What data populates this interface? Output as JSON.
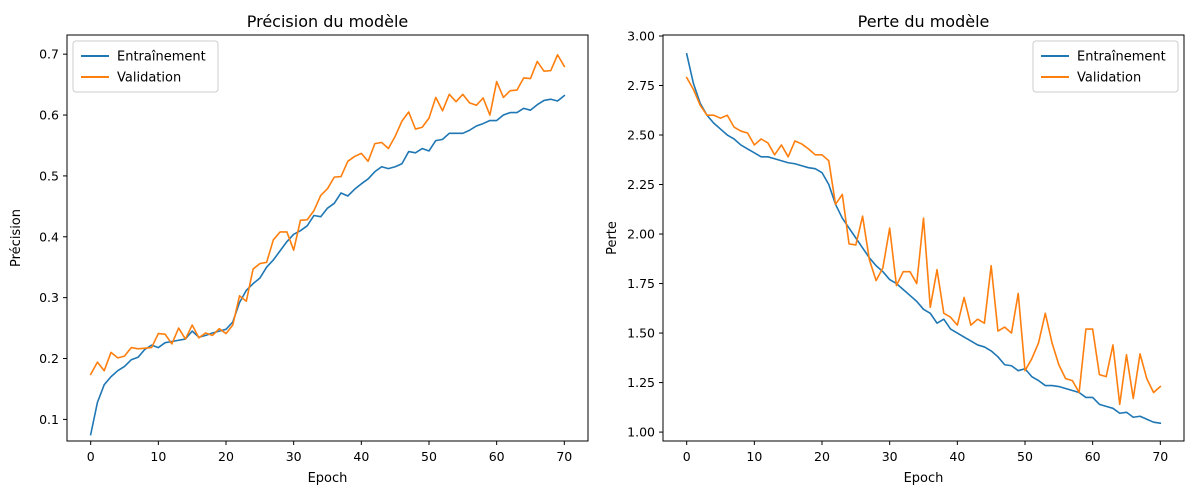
{
  "chart_data": [
    {
      "type": "line",
      "title": "Précision du modèle",
      "xlabel": "Epoch",
      "ylabel": "Précision",
      "xlim": [
        -3.5,
        73.5
      ],
      "ylim": [
        0.0645,
        0.7315
      ],
      "xticks": [
        0,
        10,
        20,
        30,
        40,
        50,
        60,
        70
      ],
      "yticks": [
        0.1,
        0.2,
        0.3,
        0.4,
        0.5,
        0.6,
        0.7
      ],
      "grid": false,
      "legend": "top-left",
      "x": [
        0,
        1,
        2,
        3,
        4,
        5,
        6,
        7,
        8,
        9,
        10,
        11,
        12,
        13,
        14,
        15,
        16,
        17,
        18,
        19,
        20,
        21,
        22,
        23,
        24,
        25,
        26,
        27,
        28,
        29,
        30,
        31,
        32,
        33,
        34,
        35,
        36,
        37,
        38,
        39,
        40,
        41,
        42,
        43,
        44,
        45,
        46,
        47,
        48,
        49,
        50,
        51,
        52,
        53,
        54,
        55,
        56,
        57,
        58,
        59,
        60,
        61,
        62,
        63,
        64,
        65,
        66,
        67,
        68,
        69,
        70
      ],
      "series": [
        {
          "name": "Entraînement",
          "color": "#1f77b4",
          "values": [
            0.075,
            0.128,
            0.157,
            0.17,
            0.18,
            0.187,
            0.198,
            0.202,
            0.215,
            0.222,
            0.218,
            0.226,
            0.228,
            0.23,
            0.232,
            0.245,
            0.235,
            0.238,
            0.242,
            0.245,
            0.248,
            0.26,
            0.292,
            0.312,
            0.323,
            0.332,
            0.35,
            0.362,
            0.377,
            0.392,
            0.404,
            0.41,
            0.418,
            0.435,
            0.433,
            0.447,
            0.455,
            0.472,
            0.467,
            0.478,
            0.487,
            0.495,
            0.507,
            0.515,
            0.512,
            0.515,
            0.52,
            0.54,
            0.538,
            0.545,
            0.541,
            0.558,
            0.56,
            0.57,
            0.57,
            0.57,
            0.575,
            0.582,
            0.586,
            0.591,
            0.591,
            0.6,
            0.604,
            0.604,
            0.611,
            0.608,
            0.617,
            0.624,
            0.626,
            0.623,
            0.632
          ]
        },
        {
          "name": "Validation",
          "color": "#ff7f0e",
          "values": [
            0.174,
            0.194,
            0.18,
            0.21,
            0.201,
            0.204,
            0.218,
            0.216,
            0.217,
            0.218,
            0.241,
            0.24,
            0.224,
            0.25,
            0.232,
            0.255,
            0.234,
            0.242,
            0.238,
            0.249,
            0.241,
            0.255,
            0.303,
            0.294,
            0.347,
            0.356,
            0.358,
            0.395,
            0.408,
            0.408,
            0.378,
            0.427,
            0.428,
            0.443,
            0.468,
            0.479,
            0.498,
            0.499,
            0.524,
            0.532,
            0.537,
            0.524,
            0.553,
            0.555,
            0.545,
            0.565,
            0.59,
            0.605,
            0.577,
            0.58,
            0.595,
            0.629,
            0.607,
            0.634,
            0.622,
            0.634,
            0.62,
            0.616,
            0.628,
            0.6,
            0.655,
            0.629,
            0.64,
            0.641,
            0.661,
            0.66,
            0.688,
            0.672,
            0.673,
            0.699,
            0.68
          ]
        }
      ]
    },
    {
      "type": "line",
      "title": "Perte du modèle",
      "xlabel": "Epoch",
      "ylabel": "Perte",
      "xlim": [
        -3.5,
        73.5
      ],
      "ylim": [
        0.955,
        3.005
      ],
      "xticks": [
        0,
        10,
        20,
        30,
        40,
        50,
        60,
        70
      ],
      "yticks": [
        1.0,
        1.25,
        1.5,
        1.75,
        2.0,
        2.25,
        2.5,
        2.75,
        3.0
      ],
      "ytick_labels": [
        "1.00",
        "1.25",
        "1.50",
        "1.75",
        "2.00",
        "2.25",
        "2.50",
        "2.75",
        "3.00"
      ],
      "grid": false,
      "legend": "top-right",
      "x": [
        0,
        1,
        2,
        3,
        4,
        5,
        6,
        7,
        8,
        9,
        10,
        11,
        12,
        13,
        14,
        15,
        16,
        17,
        18,
        19,
        20,
        21,
        22,
        23,
        24,
        25,
        26,
        27,
        28,
        29,
        30,
        31,
        32,
        33,
        34,
        35,
        36,
        37,
        38,
        39,
        40,
        41,
        42,
        43,
        44,
        45,
        46,
        47,
        48,
        49,
        50,
        51,
        52,
        53,
        54,
        55,
        56,
        57,
        58,
        59,
        60,
        61,
        62,
        63,
        64,
        65,
        66,
        67,
        68,
        69,
        70
      ],
      "series": [
        {
          "name": "Entraînement",
          "color": "#1f77b4",
          "values": [
            2.91,
            2.76,
            2.66,
            2.6,
            2.56,
            2.53,
            2.5,
            2.48,
            2.45,
            2.43,
            2.41,
            2.39,
            2.39,
            2.38,
            2.37,
            2.36,
            2.355,
            2.345,
            2.335,
            2.33,
            2.31,
            2.25,
            2.15,
            2.08,
            2.03,
            1.98,
            1.93,
            1.88,
            1.84,
            1.81,
            1.77,
            1.75,
            1.72,
            1.69,
            1.66,
            1.62,
            1.6,
            1.55,
            1.57,
            1.52,
            1.5,
            1.48,
            1.46,
            1.44,
            1.43,
            1.41,
            1.38,
            1.34,
            1.335,
            1.31,
            1.32,
            1.28,
            1.26,
            1.235,
            1.235,
            1.23,
            1.22,
            1.21,
            1.2,
            1.175,
            1.175,
            1.14,
            1.13,
            1.12,
            1.095,
            1.1,
            1.075,
            1.08,
            1.065,
            1.05,
            1.045
          ]
        },
        {
          "name": "Validation",
          "color": "#ff7f0e",
          "values": [
            2.79,
            2.73,
            2.65,
            2.6,
            2.6,
            2.585,
            2.6,
            2.54,
            2.52,
            2.51,
            2.45,
            2.48,
            2.46,
            2.4,
            2.45,
            2.39,
            2.47,
            2.455,
            2.43,
            2.4,
            2.4,
            2.37,
            2.15,
            2.2,
            1.95,
            1.945,
            2.09,
            1.87,
            1.765,
            1.83,
            2.03,
            1.74,
            1.81,
            1.81,
            1.75,
            2.08,
            1.63,
            1.82,
            1.6,
            1.58,
            1.54,
            1.68,
            1.54,
            1.57,
            1.55,
            1.84,
            1.51,
            1.53,
            1.5,
            1.7,
            1.31,
            1.37,
            1.45,
            1.6,
            1.45,
            1.34,
            1.27,
            1.26,
            1.2,
            1.52,
            1.52,
            1.29,
            1.28,
            1.44,
            1.14,
            1.39,
            1.17,
            1.395,
            1.27,
            1.2,
            1.23
          ]
        }
      ]
    }
  ]
}
